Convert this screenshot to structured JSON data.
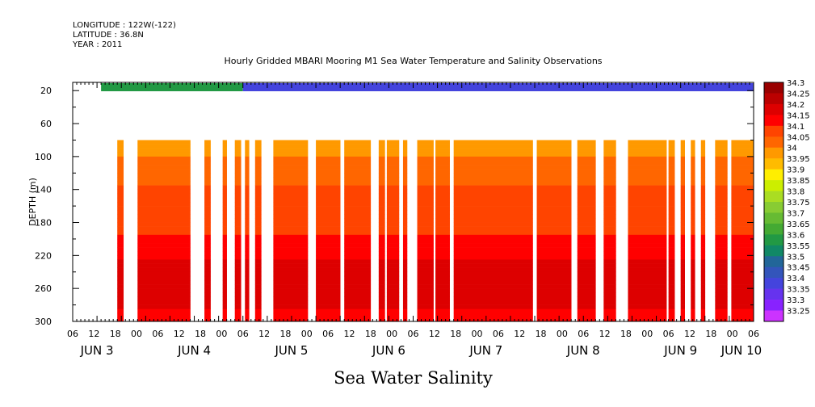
{
  "header": {
    "longitude": "LONGITUDE : 122W(-122)",
    "latitude": "LATITUDE : 36.8N",
    "year": "YEAR : 2011"
  },
  "chart_data": {
    "type": "heatmap",
    "title": "Hourly Gridded MBARI Mooring M1 Sea Water Temperature and Salinity Observations",
    "variable": "Sea Water Salinity",
    "ylabel": "DEPTH (m)",
    "y_ticks": [
      20,
      60,
      100,
      140,
      180,
      220,
      260,
      300
    ],
    "ylim": [
      300,
      10
    ],
    "y_inverted": true,
    "x_range_hours": [
      0,
      168
    ],
    "x_hour_ticks": [
      "06",
      "12",
      "18",
      "00",
      "06",
      "12",
      "18",
      "00",
      "06",
      "12",
      "18",
      "00",
      "06",
      "12",
      "18",
      "00",
      "06",
      "12",
      "18",
      "00",
      "06",
      "12",
      "18",
      "00",
      "06",
      "12",
      "18",
      "00",
      "06",
      "12",
      "18",
      "00",
      "06"
    ],
    "x_day_labels": [
      "JUN  3",
      "JUN  4",
      "JUN  5",
      "JUN  6",
      "JUN  7",
      "JUN  8",
      "JUN  9",
      "JUN 10"
    ],
    "x_day_label_hours": [
      6,
      30,
      54,
      78,
      102,
      126,
      150,
      165
    ],
    "colorbar": {
      "levels": [
        "34.3",
        "34.25",
        "34.2",
        "34.15",
        "34.1",
        "34.05",
        "34",
        "33.95",
        "33.9",
        "33.85",
        "33.8",
        "33.75",
        "33.7",
        "33.65",
        "33.6",
        "33.55",
        "33.5",
        "33.45",
        "33.4",
        "33.35",
        "33.3",
        "33.25"
      ],
      "colors": [
        "#990000",
        "#bb0000",
        "#dd0000",
        "#ff0000",
        "#ff4400",
        "#ff6600",
        "#ff9900",
        "#ffbb00",
        "#ffee00",
        "#ccee00",
        "#aadd22",
        "#88cc33",
        "#66bb33",
        "#44aa33",
        "#229944",
        "#118866",
        "#226699",
        "#3355bb",
        "#4444dd",
        "#6633ee",
        "#8822ff",
        "#cc33ff"
      ]
    },
    "surface_series": {
      "depth_m": 10,
      "segments": [
        {
          "x0": 7,
          "x1": 42,
          "value": 33.6
        },
        {
          "x0": 42,
          "x1": 168,
          "value": 33.42
        }
      ]
    },
    "data_start_depth_m": 80,
    "data_columns_hours": [
      [
        11,
        12.5
      ],
      [
        16,
        29
      ],
      [
        32.5,
        34
      ],
      [
        37,
        38
      ],
      [
        40,
        41.5
      ],
      [
        42.5,
        43.5
      ],
      [
        45,
        46.5
      ],
      [
        49.5,
        58
      ],
      [
        60,
        66
      ],
      [
        67,
        73.5
      ],
      [
        75.5,
        77
      ],
      [
        77.5,
        80.5
      ],
      [
        81.5,
        82.5
      ],
      [
        85,
        89
      ],
      [
        89.5,
        93
      ],
      [
        94,
        113.5
      ],
      [
        114.5,
        123
      ],
      [
        124.5,
        129
      ],
      [
        131,
        134
      ],
      [
        137,
        146.5
      ],
      [
        147,
        148.5
      ],
      [
        150,
        151
      ],
      [
        152.5,
        153.5
      ],
      [
        155,
        156
      ],
      [
        158.5,
        161.5
      ],
      [
        162.5,
        168
      ]
    ],
    "depth_profile": [
      {
        "depth": 80,
        "value": 34.02
      },
      {
        "depth": 100,
        "value": 34.05
      },
      {
        "depth": 120,
        "value": 34.08
      },
      {
        "depth": 140,
        "value": 34.11
      },
      {
        "depth": 160,
        "value": 34.12
      },
      {
        "depth": 180,
        "value": 34.13
      },
      {
        "depth": 200,
        "value": 34.16
      },
      {
        "depth": 220,
        "value": 34.19
      },
      {
        "depth": 240,
        "value": 34.22
      },
      {
        "depth": 260,
        "value": 34.25
      },
      {
        "depth": 280,
        "value": 34.21
      },
      {
        "depth": 300,
        "value": 34.17
      }
    ]
  }
}
